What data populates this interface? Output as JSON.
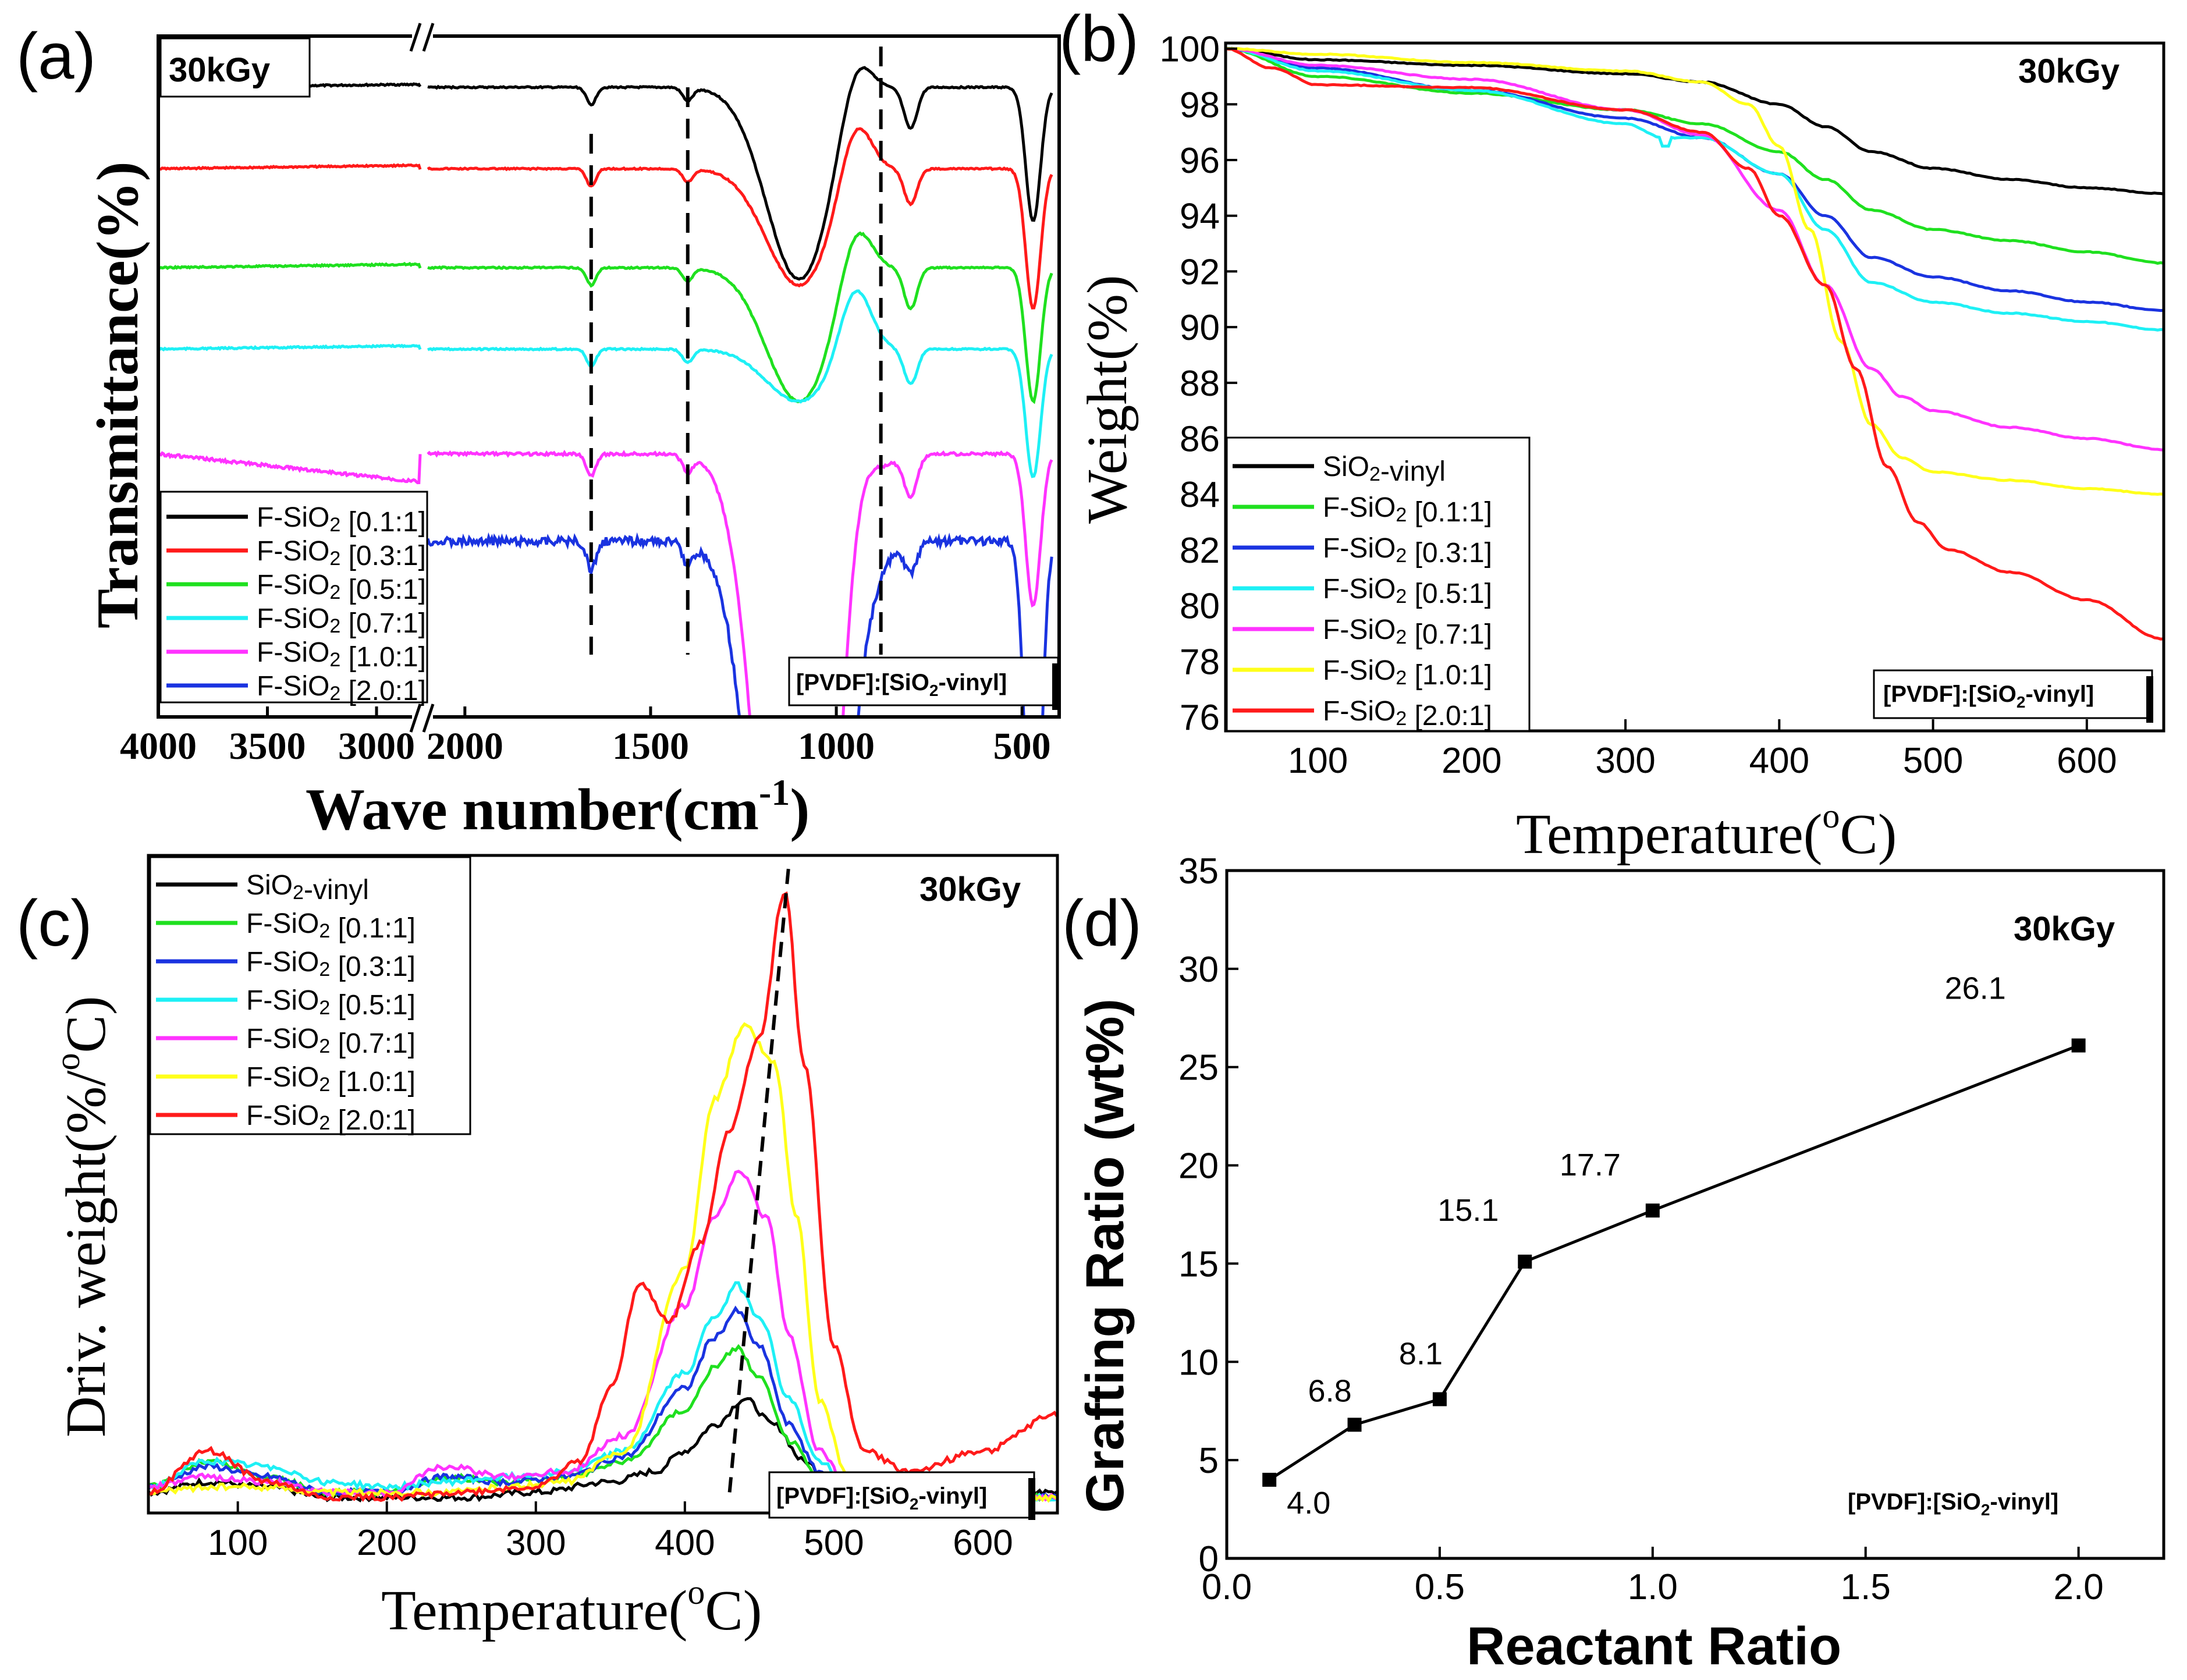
{
  "dose_label": "30kGy",
  "ratio_label": "[PVDF]:[SiO2-vinyl]",
  "colors": {
    "black": "#000000",
    "red": "#ff1a1a",
    "green": "#1fe01f",
    "cyan": "#1ef0f5",
    "magenta": "#ff33ff",
    "yellow": "#ffff1a",
    "blue": "#1a33e0"
  },
  "panels": {
    "a": {
      "label": "(a)",
      "xlabel": "Wave number(cm",
      "xlabel_sup": "-1",
      "xlabel_close": ")",
      "ylabel": "Transmittance(%)",
      "xticks_left": [
        "4000",
        "3500",
        "3000"
      ],
      "xticks_right": [
        "2000",
        "1500",
        "1000",
        "500"
      ],
      "legend": [
        "F-SiO2 [0.1:1]",
        "F-SiO2 [0.3:1]",
        "F-SiO2 [0.5:1]",
        "F-SiO2 [0.7:1]",
        "F-SiO2 [1.0:1]",
        "F-SiO2 [2.0:1]"
      ],
      "legend_colors": [
        "#000000",
        "#ff1a1a",
        "#1fe01f",
        "#1ef0f5",
        "#ff33ff",
        "#1a33e0"
      ]
    },
    "b": {
      "label": "(b)",
      "xlabel": "Temperature(",
      "xlabel_sup": "o",
      "xlabel_close": "C)",
      "ylabel": "Weight(%)",
      "xticks": [
        "100",
        "200",
        "300",
        "400",
        "500",
        "600"
      ],
      "yticks": [
        "76",
        "78",
        "80",
        "82",
        "84",
        "86",
        "88",
        "90",
        "92",
        "94",
        "96",
        "98",
        "100"
      ],
      "legend": [
        "SiO2-vinyl",
        "F-SiO2 [0.1:1]",
        "F-SiO2 [0.3:1]",
        "F-SiO2 [0.5:1]",
        "F-SiO2 [0.7:1]",
        "F-SiO2 [1.0:1]",
        "F-SiO2 [2.0:1]"
      ],
      "legend_colors": [
        "#000000",
        "#1fe01f",
        "#1a33e0",
        "#1ef0f5",
        "#ff33ff",
        "#ffff1a",
        "#ff1a1a"
      ]
    },
    "c": {
      "label": "(c)",
      "xlabel": "Temperature(",
      "xlabel_sup": "o",
      "xlabel_close": "C)",
      "ylabel": "Driv. weight(%/",
      "ylabel_sup": "o",
      "ylabel_close": "C)",
      "xticks": [
        "100",
        "200",
        "300",
        "400",
        "500",
        "600"
      ],
      "legend": [
        "SiO2-vinyl",
        "F-SiO2 [0.1:1]",
        "F-SiO2 [0.3:1]",
        "F-SiO2 [0.5:1]",
        "F-SiO2 [0.7:1]",
        "F-SiO2 [1.0:1]",
        "F-SiO2 [2.0:1]"
      ],
      "legend_colors": [
        "#000000",
        "#1fe01f",
        "#1a33e0",
        "#1ef0f5",
        "#ff33ff",
        "#ffff1a",
        "#ff1a1a"
      ]
    },
    "d": {
      "label": "(d)",
      "xlabel": "Reactant Ratio",
      "ylabel": "Grafting Ratio (wt%)",
      "xticks": [
        "0.0",
        "0.5",
        "1.0",
        "1.5",
        "2.0"
      ],
      "yticks": [
        "0",
        "5",
        "10",
        "15",
        "20",
        "25",
        "30",
        "35"
      ]
    }
  },
  "chart_data": [
    {
      "panel": "a",
      "type": "line",
      "title": "",
      "xlabel": "Wave number(cm-1)",
      "ylabel": "Transmittance(%)",
      "xlim": [
        4000,
        400
      ],
      "axis_break": [
        2800,
        2100
      ],
      "series": [
        {
          "name": "F-SiO2 [0.1:1]",
          "color": "#000000",
          "offset": 0.0
        },
        {
          "name": "F-SiO2 [0.3:1]",
          "color": "#ff1a1a",
          "offset": 1.0
        },
        {
          "name": "F-SiO2 [0.5:1]",
          "color": "#1fe01f",
          "offset": 2.0
        },
        {
          "name": "F-SiO2 [0.7:1]",
          "color": "#1ef0f5",
          "offset": 3.0
        },
        {
          "name": "F-SiO2 [1.0:1]",
          "color": "#ff33ff",
          "offset": 4.0
        },
        {
          "name": "F-SiO2 [2.0:1]",
          "color": "#1a33e0",
          "offset": 5.0
        }
      ],
      "dashed_markers": [
        1660,
        1400,
        880
      ]
    },
    {
      "panel": "b",
      "type": "line",
      "xlabel": "Temperature(oC)",
      "ylabel": "Weight(%)",
      "xlim": [
        40,
        650
      ],
      "ylim": [
        75.5,
        100.2
      ],
      "series": [
        {
          "name": "SiO2-vinyl",
          "color": "#000000",
          "x": [
            40,
            100,
            200,
            300,
            350,
            400,
            430,
            460,
            500,
            550,
            600,
            650
          ],
          "y": [
            100,
            99.6,
            99.4,
            99.1,
            98.8,
            98.0,
            97.2,
            96.3,
            95.7,
            95.3,
            95.0,
            94.8
          ]
        },
        {
          "name": "F-SiO2 [0.1:1]",
          "color": "#1fe01f",
          "x": [
            40,
            100,
            200,
            300,
            350,
            400,
            430,
            460,
            500,
            550,
            600,
            650
          ],
          "y": [
            100,
            99.0,
            98.4,
            97.8,
            97.3,
            96.3,
            95.3,
            94.2,
            93.5,
            93.1,
            92.7,
            92.3
          ]
        },
        {
          "name": "F-SiO2 [0.3:1]",
          "color": "#1a33e0",
          "x": [
            40,
            100,
            200,
            300,
            350,
            400,
            430,
            460,
            500,
            550,
            600,
            650
          ],
          "y": [
            100,
            99.3,
            98.5,
            97.5,
            96.8,
            95.5,
            94.0,
            92.5,
            91.8,
            91.3,
            90.9,
            90.6
          ]
        },
        {
          "name": "F-SiO2 [0.5:1]",
          "color": "#1ef0f5",
          "x": [
            40,
            100,
            200,
            300,
            325,
            350,
            400,
            430,
            460,
            500,
            550,
            600,
            650
          ],
          "y": [
            100,
            99.2,
            98.5,
            97.3,
            96.8,
            96.8,
            95.5,
            93.5,
            91.6,
            90.9,
            90.5,
            90.2,
            89.9
          ]
        },
        {
          "name": "F-SiO2 [0.7:1]",
          "color": "#ff33ff",
          "x": [
            40,
            100,
            200,
            300,
            350,
            400,
            430,
            460,
            480,
            500,
            550,
            600,
            650
          ],
          "y": [
            100,
            99.4,
            98.9,
            97.8,
            96.9,
            94.2,
            91.5,
            88.5,
            87.5,
            87.0,
            86.4,
            86.0,
            85.6
          ]
        },
        {
          "name": "F-SiO2 [1.0:1]",
          "color": "#ffff1a",
          "x": [
            40,
            100,
            200,
            300,
            350,
            380,
            400,
            420,
            440,
            460,
            480,
            500,
            550,
            600,
            650
          ],
          "y": [
            100,
            99.8,
            99.5,
            99.2,
            98.8,
            98.0,
            96.5,
            93.5,
            89.5,
            86.5,
            85.3,
            84.8,
            84.5,
            84.2,
            84.0
          ]
        },
        {
          "name": "F-SiO2 [2.0:1]",
          "color": "#ff1a1a",
          "x": [
            40,
            70,
            100,
            200,
            300,
            350,
            380,
            400,
            430,
            450,
            470,
            490,
            510,
            550,
            600,
            650
          ],
          "y": [
            100,
            99.3,
            98.7,
            98.6,
            97.8,
            97.0,
            95.7,
            94.0,
            91.5,
            88.5,
            85.0,
            83.0,
            82.0,
            81.2,
            80.2,
            78.8
          ]
        }
      ]
    },
    {
      "panel": "c",
      "type": "line",
      "xlabel": "Temperature(oC)",
      "ylabel": "Driv. weight(%/oC)",
      "xlim": [
        40,
        650
      ],
      "ylim": [
        -0.02,
        1.25
      ],
      "series": [
        {
          "name": "SiO2-vinyl",
          "color": "#000000",
          "x": [
            40,
            80,
            120,
            160,
            200,
            250,
            300,
            350,
            380,
            400,
            420,
            440,
            460,
            480,
            500,
            520
          ],
          "y": [
            0.02,
            0.04,
            0.03,
            0.01,
            0.01,
            0.01,
            0.02,
            0.04,
            0.06,
            0.1,
            0.15,
            0.2,
            0.15,
            0.08,
            0.03,
            0.02
          ]
        },
        {
          "name": "F-SiO2 [0.1:1]",
          "color": "#1fe01f",
          "x": [
            40,
            80,
            120,
            160,
            200,
            240,
            280,
            320,
            360,
            400,
            420,
            435,
            450,
            470,
            490,
            510,
            530
          ],
          "y": [
            0.03,
            0.08,
            0.05,
            0.02,
            0.02,
            0.05,
            0.04,
            0.05,
            0.08,
            0.18,
            0.26,
            0.3,
            0.24,
            0.12,
            0.05,
            0.02,
            0.01
          ]
        },
        {
          "name": "F-SiO2 [0.3:1]",
          "color": "#1a33e0",
          "x": [
            40,
            80,
            120,
            160,
            200,
            240,
            280,
            320,
            360,
            400,
            420,
            435,
            450,
            470,
            490,
            510,
            530
          ],
          "y": [
            0.03,
            0.07,
            0.05,
            0.02,
            0.02,
            0.05,
            0.04,
            0.05,
            0.09,
            0.22,
            0.32,
            0.37,
            0.3,
            0.15,
            0.06,
            0.02,
            0.01
          ]
        },
        {
          "name": "F-SiO2 [0.5:1]",
          "color": "#1ef0f5",
          "x": [
            40,
            80,
            120,
            160,
            200,
            240,
            280,
            320,
            360,
            400,
            420,
            435,
            450,
            470,
            490,
            510,
            530
          ],
          "y": [
            0.03,
            0.08,
            0.07,
            0.04,
            0.03,
            0.04,
            0.05,
            0.06,
            0.1,
            0.25,
            0.36,
            0.42,
            0.36,
            0.2,
            0.08,
            0.03,
            0.01
          ]
        },
        {
          "name": "F-SiO2 [0.7:1]",
          "color": "#ff33ff",
          "x": [
            40,
            80,
            120,
            160,
            200,
            240,
            280,
            320,
            360,
            400,
            420,
            437,
            455,
            470,
            490,
            510,
            530
          ],
          "y": [
            0.03,
            0.05,
            0.04,
            0.02,
            0.02,
            0.07,
            0.05,
            0.06,
            0.13,
            0.38,
            0.55,
            0.64,
            0.55,
            0.32,
            0.1,
            0.03,
            0.01
          ]
        },
        {
          "name": "F-SiO2 [1.0:1]",
          "color": "#ffff1a",
          "x": [
            40,
            80,
            120,
            160,
            200,
            240,
            280,
            320,
            360,
            400,
            420,
            440,
            460,
            475,
            490,
            510,
            530
          ],
          "y": [
            0.02,
            0.03,
            0.03,
            0.02,
            0.02,
            0.02,
            0.03,
            0.04,
            0.1,
            0.45,
            0.78,
            0.92,
            0.85,
            0.55,
            0.2,
            0.05,
            0.01
          ]
        },
        {
          "name": "F-SiO2 [2.0:1]",
          "color": "#ff1a1a",
          "x": [
            40,
            80,
            120,
            160,
            200,
            250,
            300,
            330,
            350,
            370,
            390,
            410,
            430,
            450,
            467,
            480,
            500,
            520,
            550,
            600,
            650
          ],
          "y": [
            0.02,
            0.1,
            0.04,
            0.01,
            0.01,
            0.02,
            0.03,
            0.08,
            0.22,
            0.42,
            0.35,
            0.5,
            0.72,
            0.9,
            1.18,
            0.85,
            0.3,
            0.1,
            0.06,
            0.1,
            0.17
          ]
        }
      ]
    },
    {
      "panel": "d",
      "type": "line",
      "title": "",
      "xlabel": "Reactant Ratio",
      "ylabel": "Grafting Ratio (wt%)",
      "xlim": [
        0.0,
        2.2
      ],
      "ylim": [
        0,
        35
      ],
      "x": [
        0.1,
        0.3,
        0.5,
        0.7,
        1.0,
        2.0
      ],
      "values": [
        4.0,
        6.8,
        8.1,
        15.1,
        17.7,
        26.1
      ],
      "labels": [
        "4.0",
        "6.8",
        "8.1",
        "15.1",
        "17.7",
        "26.1"
      ]
    }
  ]
}
